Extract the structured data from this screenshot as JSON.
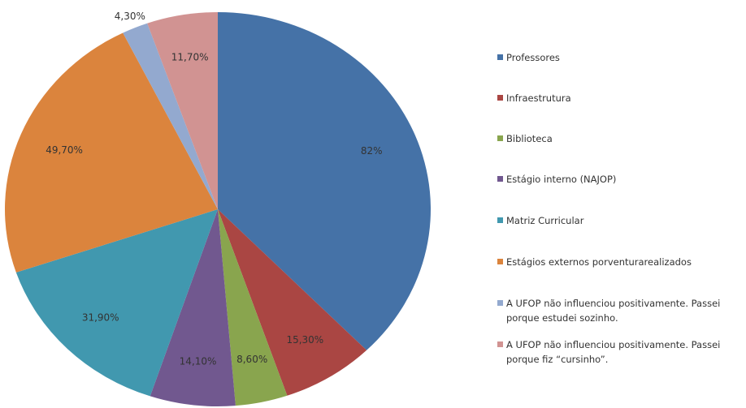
{
  "chart_data": {
    "type": "pie",
    "categories": [
      "Professores",
      "Infraestrutura",
      "Biblioteca",
      "Estágio interno (NAJOP)",
      "Matriz Curricular",
      "Estágios externos porventurarealizados",
      "A UFOP não influenciou positivamente. Passei porque estudei sozinho.",
      "A UFOP não influenciou positivamente. Passei porque fiz “cursinho”."
    ],
    "values": [
      82,
      15.3,
      8.6,
      14.1,
      31.9,
      49.7,
      4.3,
      11.7
    ],
    "value_labels": [
      "82%",
      "15,30%",
      "8,60%",
      "14,10%",
      "31,90%",
      "49,70%",
      "4,30%",
      "11,70%"
    ],
    "colors": [
      "#4572a7",
      "#aa4643",
      "#89a54e",
      "#71588f",
      "#4198af",
      "#db843d",
      "#93a9cf",
      "#d19392"
    ],
    "legend": "right"
  }
}
